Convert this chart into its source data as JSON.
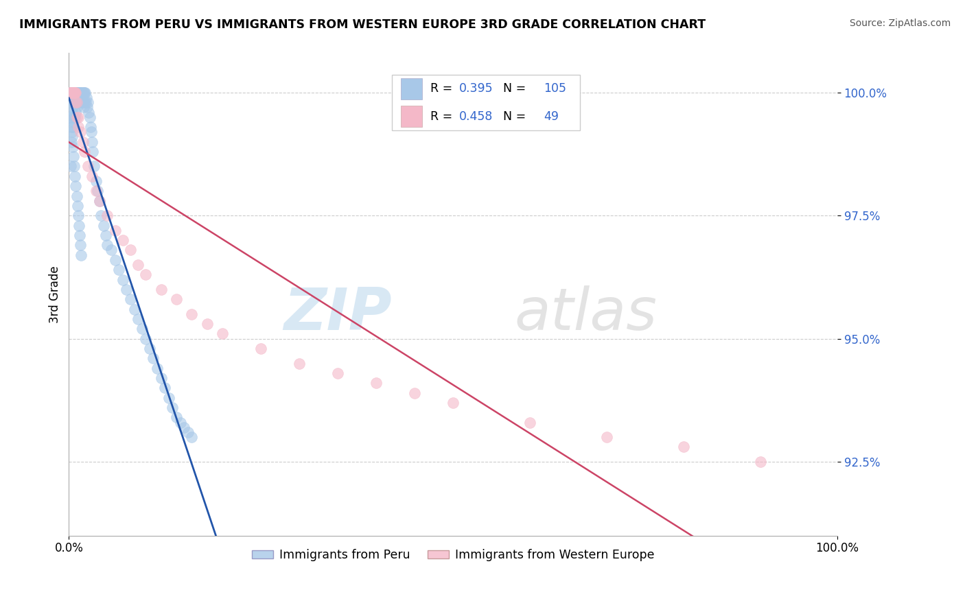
{
  "title": "IMMIGRANTS FROM PERU VS IMMIGRANTS FROM WESTERN EUROPE 3RD GRADE CORRELATION CHART",
  "source": "Source: ZipAtlas.com",
  "ylabel": "3rd Grade",
  "yticks": [
    92.5,
    95.0,
    97.5,
    100.0
  ],
  "ytick_labels": [
    "92.5%",
    "95.0%",
    "97.5%",
    "100.0%"
  ],
  "xlim": [
    0.0,
    1.0
  ],
  "ylim": [
    91.0,
    100.8
  ],
  "blue_color": "#a8c8e8",
  "pink_color": "#f4b8c8",
  "blue_line_color": "#2255aa",
  "pink_line_color": "#cc4466",
  "legend_blue_label": "Immigrants from Peru",
  "legend_pink_label": "Immigrants from Western Europe",
  "R_blue": 0.395,
  "N_blue": 105,
  "R_pink": 0.458,
  "N_pink": 49,
  "watermark_zip": "ZIP",
  "watermark_atlas": "atlas",
  "blue_scatter_x": [
    0.001,
    0.001,
    0.002,
    0.002,
    0.002,
    0.003,
    0.003,
    0.003,
    0.004,
    0.004,
    0.004,
    0.005,
    0.005,
    0.005,
    0.006,
    0.006,
    0.006,
    0.007,
    0.007,
    0.007,
    0.008,
    0.008,
    0.008,
    0.009,
    0.009,
    0.009,
    0.01,
    0.01,
    0.01,
    0.011,
    0.011,
    0.012,
    0.012,
    0.013,
    0.013,
    0.014,
    0.014,
    0.015,
    0.015,
    0.016,
    0.016,
    0.017,
    0.017,
    0.018,
    0.018,
    0.019,
    0.019,
    0.02,
    0.02,
    0.021,
    0.022,
    0.023,
    0.024,
    0.025,
    0.026,
    0.027,
    0.028,
    0.029,
    0.03,
    0.031,
    0.033,
    0.035,
    0.037,
    0.04,
    0.042,
    0.045,
    0.048,
    0.05,
    0.055,
    0.06,
    0.065,
    0.07,
    0.075,
    0.08,
    0.085,
    0.09,
    0.095,
    0.1,
    0.105,
    0.11,
    0.115,
    0.12,
    0.125,
    0.13,
    0.135,
    0.14,
    0.145,
    0.15,
    0.155,
    0.16,
    0.002,
    0.003,
    0.004,
    0.005,
    0.006,
    0.007,
    0.008,
    0.009,
    0.01,
    0.011,
    0.012,
    0.013,
    0.014,
    0.015,
    0.016
  ],
  "blue_scatter_y": [
    100.0,
    99.8,
    100.0,
    99.5,
    98.5,
    100.0,
    99.8,
    99.0,
    100.0,
    99.6,
    99.2,
    100.0,
    99.7,
    99.3,
    100.0,
    99.8,
    99.4,
    100.0,
    99.9,
    99.5,
    100.0,
    99.8,
    99.5,
    100.0,
    99.9,
    99.6,
    100.0,
    99.8,
    99.7,
    100.0,
    99.9,
    100.0,
    99.8,
    100.0,
    99.9,
    100.0,
    99.8,
    100.0,
    99.9,
    100.0,
    99.8,
    100.0,
    99.9,
    100.0,
    99.8,
    100.0,
    99.7,
    100.0,
    99.8,
    100.0,
    99.8,
    99.9,
    99.7,
    99.8,
    99.6,
    99.5,
    99.3,
    99.2,
    99.0,
    98.8,
    98.5,
    98.2,
    98.0,
    97.8,
    97.5,
    97.3,
    97.1,
    96.9,
    96.8,
    96.6,
    96.4,
    96.2,
    96.0,
    95.8,
    95.6,
    95.4,
    95.2,
    95.0,
    94.8,
    94.6,
    94.4,
    94.2,
    94.0,
    93.8,
    93.6,
    93.4,
    93.3,
    93.2,
    93.1,
    93.0,
    99.5,
    99.3,
    99.1,
    98.9,
    98.7,
    98.5,
    98.3,
    98.1,
    97.9,
    97.7,
    97.5,
    97.3,
    97.1,
    96.9,
    96.7
  ],
  "pink_scatter_x": [
    0.002,
    0.003,
    0.004,
    0.005,
    0.006,
    0.007,
    0.008,
    0.009,
    0.01,
    0.012,
    0.015,
    0.018,
    0.02,
    0.025,
    0.03,
    0.035,
    0.04,
    0.05,
    0.06,
    0.07,
    0.08,
    0.09,
    0.1,
    0.12,
    0.14,
    0.16,
    0.18,
    0.2,
    0.25,
    0.3,
    0.35,
    0.4,
    0.45,
    0.5,
    0.6,
    0.7,
    0.8,
    0.9,
    0.001,
    0.002,
    0.003,
    0.004,
    0.005,
    0.006,
    0.007,
    0.008,
    0.009,
    0.01,
    0.012
  ],
  "pink_scatter_y": [
    100.0,
    100.0,
    100.0,
    100.0,
    100.0,
    100.0,
    100.0,
    99.8,
    99.5,
    99.3,
    99.2,
    99.0,
    98.8,
    98.5,
    98.3,
    98.0,
    97.8,
    97.5,
    97.2,
    97.0,
    96.8,
    96.5,
    96.3,
    96.0,
    95.8,
    95.5,
    95.3,
    95.1,
    94.8,
    94.5,
    94.3,
    94.1,
    93.9,
    93.7,
    93.3,
    93.0,
    92.8,
    92.5,
    100.0,
    100.0,
    100.0,
    100.0,
    100.0,
    100.0,
    100.0,
    100.0,
    100.0,
    99.8,
    99.5
  ]
}
